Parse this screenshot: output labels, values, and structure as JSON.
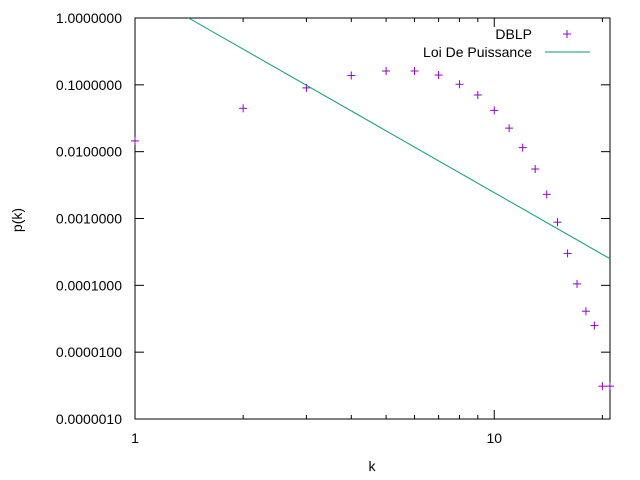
{
  "chart_data": {
    "type": "scatter",
    "xlabel": "k",
    "ylabel": "p(k)",
    "x_scale": "log",
    "y_scale": "log",
    "xlim": [
      1,
      21
    ],
    "ylim": [
      1e-06,
      1
    ],
    "x_ticks": [
      {
        "value": 1,
        "label": "1"
      },
      {
        "value": 10,
        "label": "10"
      }
    ],
    "y_ticks": [
      {
        "value": 1,
        "label": "1.0000000"
      },
      {
        "value": 0.1,
        "label": "0.1000000"
      },
      {
        "value": 0.01,
        "label": "0.0100000"
      },
      {
        "value": 0.001,
        "label": "0.0010000"
      },
      {
        "value": 0.0001,
        "label": "0.0001000"
      },
      {
        "value": 1e-05,
        "label": "0.0000100"
      },
      {
        "value": 1e-06,
        "label": "0.0000010"
      }
    ],
    "legend_position": "top-right",
    "series": [
      {
        "name": "DBLP",
        "kind": "points",
        "marker": "+",
        "color": "#9400d3",
        "points": [
          {
            "x": 1,
            "y": 0.0145
          },
          {
            "x": 2,
            "y": 0.0445
          },
          {
            "x": 3,
            "y": 0.09
          },
          {
            "x": 4,
            "y": 0.138
          },
          {
            "x": 5,
            "y": 0.161
          },
          {
            "x": 6,
            "y": 0.161
          },
          {
            "x": 7,
            "y": 0.14
          },
          {
            "x": 8,
            "y": 0.102
          },
          {
            "x": 9,
            "y": 0.0705
          },
          {
            "x": 10,
            "y": 0.0415
          },
          {
            "x": 11,
            "y": 0.0225
          },
          {
            "x": 12,
            "y": 0.0115
          },
          {
            "x": 13,
            "y": 0.0055
          },
          {
            "x": 14,
            "y": 0.0023
          },
          {
            "x": 15,
            "y": 0.00088
          },
          {
            "x": 16,
            "y": 0.0003
          },
          {
            "x": 17,
            "y": 0.000105
          },
          {
            "x": 18,
            "y": 4.1e-05
          },
          {
            "x": 19,
            "y": 2.5e-05
          },
          {
            "x": 20,
            "y": 3.1e-06
          },
          {
            "x": 21,
            "y": 3.1e-06
          }
        ]
      },
      {
        "name": "Loi De Puissance",
        "kind": "line",
        "color": "#009e73",
        "points": [
          {
            "x": 1.41,
            "y": 1.0
          },
          {
            "x": 21,
            "y": 0.00025
          }
        ]
      }
    ]
  }
}
